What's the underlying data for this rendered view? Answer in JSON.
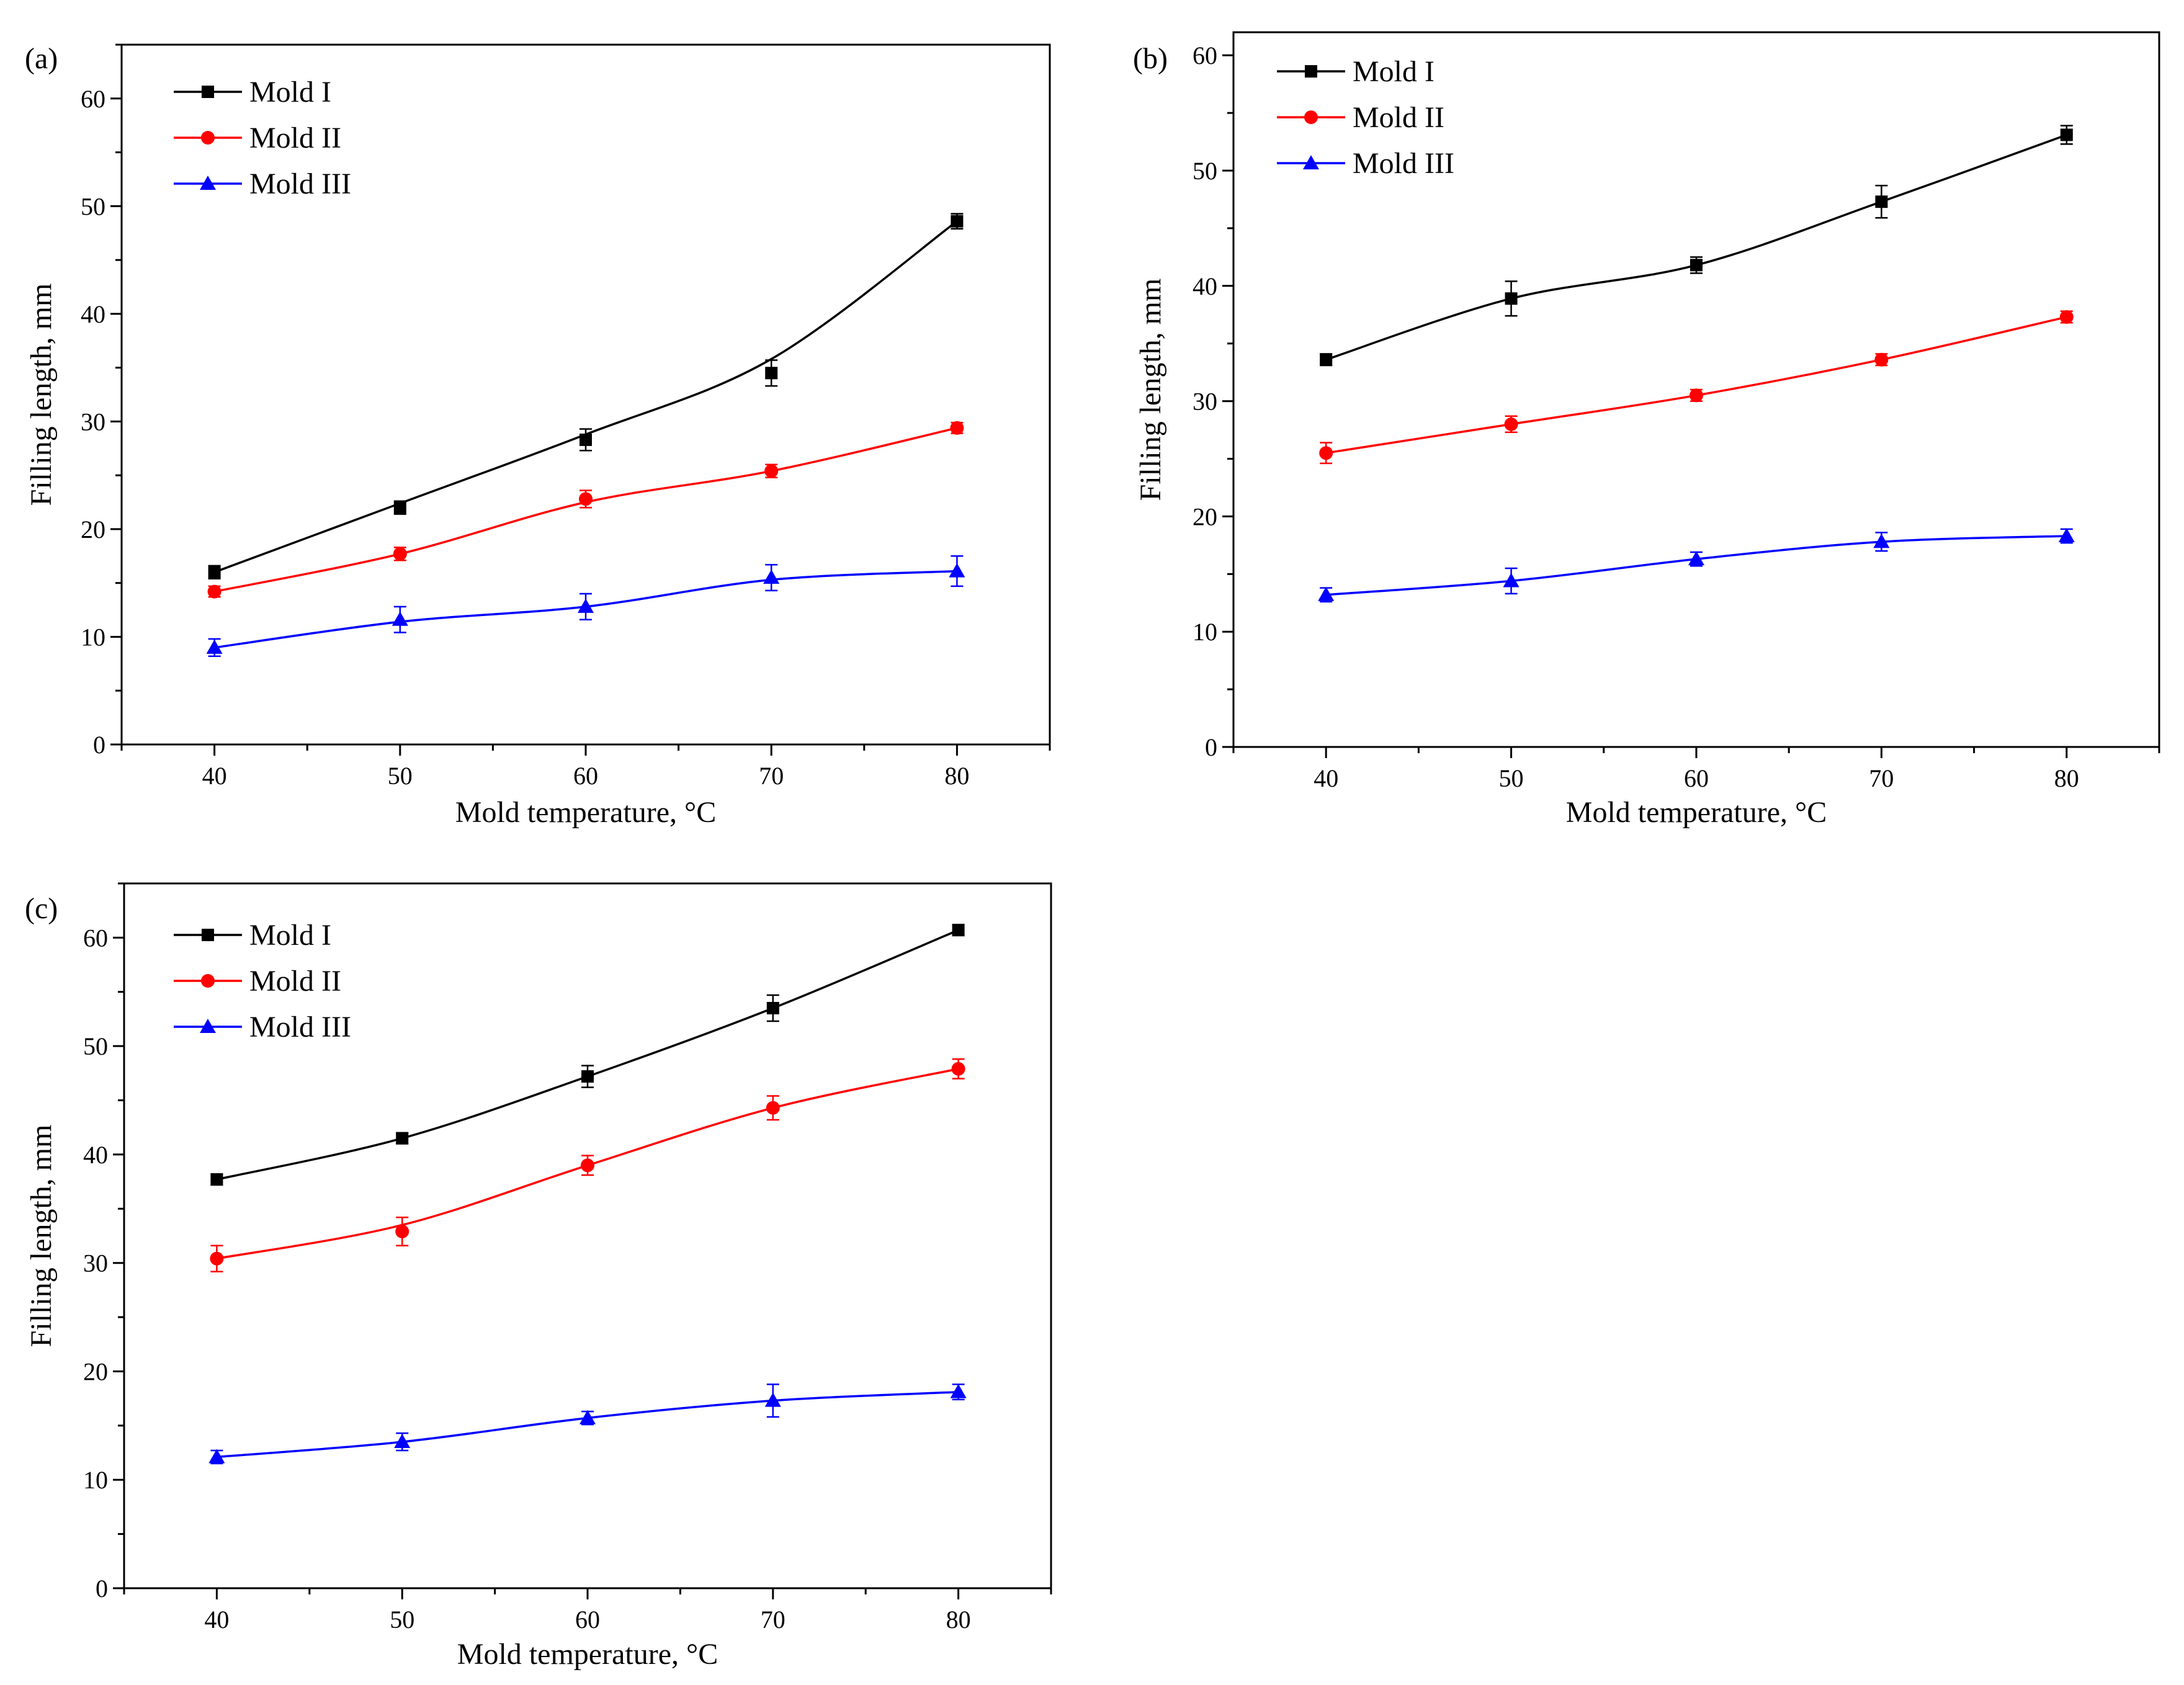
{
  "chart_data": [
    {
      "type": "line",
      "panel_label": "(a)",
      "xlabel": "Mold temperature, °C",
      "ylabel": "Filling length, mm",
      "xlim": [
        35,
        85
      ],
      "ylim": [
        0,
        65
      ],
      "xticks": [
        40,
        50,
        60,
        70,
        80
      ],
      "yticks": [
        0,
        10,
        20,
        30,
        40,
        50,
        60
      ],
      "legend_position": "top-left",
      "x": [
        40,
        50,
        60,
        70,
        80
      ],
      "series": [
        {
          "name": "Mold I",
          "color": "#000000",
          "marker": "square",
          "values": [
            16.0,
            22.0,
            28.3,
            34.5,
            48.6
          ],
          "errors": [
            0.6,
            0.6,
            1.0,
            1.2,
            0.7
          ],
          "curve": [
            16.0,
            22.4,
            28.8,
            35.8,
            48.6
          ]
        },
        {
          "name": "Mold II",
          "color": "#ff0000",
          "marker": "circle",
          "values": [
            14.2,
            17.7,
            22.8,
            25.4,
            29.4
          ],
          "errors": [
            0.5,
            0.6,
            0.8,
            0.6,
            0.5
          ],
          "curve": [
            14.2,
            17.7,
            22.5,
            25.4,
            29.4
          ]
        },
        {
          "name": "Mold III",
          "color": "#0000ff",
          "marker": "triangle",
          "values": [
            9.0,
            11.6,
            12.8,
            15.5,
            16.1
          ],
          "errors": [
            0.8,
            1.2,
            1.2,
            1.2,
            1.4
          ],
          "curve": [
            9.0,
            11.4,
            12.8,
            15.3,
            16.1
          ]
        }
      ]
    },
    {
      "type": "line",
      "panel_label": "(b)",
      "xlabel": "Mold temperature, °C",
      "ylabel": "Filling length, mm",
      "xlim": [
        35,
        85
      ],
      "ylim": [
        0,
        62
      ],
      "xticks": [
        40,
        50,
        60,
        70,
        80
      ],
      "yticks": [
        0,
        10,
        20,
        30,
        40,
        50,
        60
      ],
      "legend_position": "top-left",
      "x": [
        40,
        50,
        60,
        70,
        80
      ],
      "series": [
        {
          "name": "Mold I",
          "color": "#000000",
          "marker": "square",
          "values": [
            33.6,
            38.9,
            41.8,
            47.3,
            53.1
          ],
          "errors": [
            0.5,
            1.5,
            0.7,
            1.4,
            0.8
          ],
          "curve": [
            33.6,
            38.9,
            41.8,
            47.3,
            53.1
          ]
        },
        {
          "name": "Mold II",
          "color": "#ff0000",
          "marker": "circle",
          "values": [
            25.5,
            28.0,
            30.5,
            33.6,
            37.3
          ],
          "errors": [
            0.9,
            0.7,
            0.5,
            0.5,
            0.5
          ],
          "curve": [
            25.5,
            28.0,
            30.5,
            33.6,
            37.3
          ]
        },
        {
          "name": "Mold III",
          "color": "#0000ff",
          "marker": "triangle",
          "values": [
            13.2,
            14.4,
            16.3,
            17.8,
            18.3
          ],
          "errors": [
            0.6,
            1.1,
            0.6,
            0.8,
            0.6
          ],
          "curve": [
            13.2,
            14.4,
            16.3,
            17.8,
            18.3
          ]
        }
      ]
    },
    {
      "type": "line",
      "panel_label": "(c)",
      "xlabel": "Mold temperature, °C",
      "ylabel": "Filling length, mm",
      "xlim": [
        35,
        85
      ],
      "ylim": [
        0,
        65
      ],
      "xticks": [
        40,
        50,
        60,
        70,
        80
      ],
      "yticks": [
        0,
        10,
        20,
        30,
        40,
        50,
        60
      ],
      "legend_position": "top-left",
      "x": [
        40,
        50,
        60,
        70,
        80
      ],
      "series": [
        {
          "name": "Mold I",
          "color": "#000000",
          "marker": "square",
          "values": [
            37.7,
            41.5,
            47.2,
            53.5,
            60.7
          ],
          "errors": [
            0.5,
            0.5,
            1.0,
            1.2,
            0.5
          ],
          "curve": [
            37.7,
            41.5,
            47.2,
            53.5,
            60.7
          ]
        },
        {
          "name": "Mold II",
          "color": "#ff0000",
          "marker": "circle",
          "values": [
            30.4,
            32.9,
            39.0,
            44.3,
            47.9
          ],
          "errors": [
            1.2,
            1.3,
            0.9,
            1.1,
            0.9
          ],
          "curve": [
            30.4,
            33.5,
            39.0,
            44.3,
            47.9
          ]
        },
        {
          "name": "Mold III",
          "color": "#0000ff",
          "marker": "triangle",
          "values": [
            12.1,
            13.5,
            15.7,
            17.3,
            18.1
          ],
          "errors": [
            0.6,
            0.8,
            0.6,
            1.5,
            0.7
          ],
          "curve": [
            12.1,
            13.5,
            15.7,
            17.3,
            18.1
          ]
        }
      ]
    }
  ]
}
